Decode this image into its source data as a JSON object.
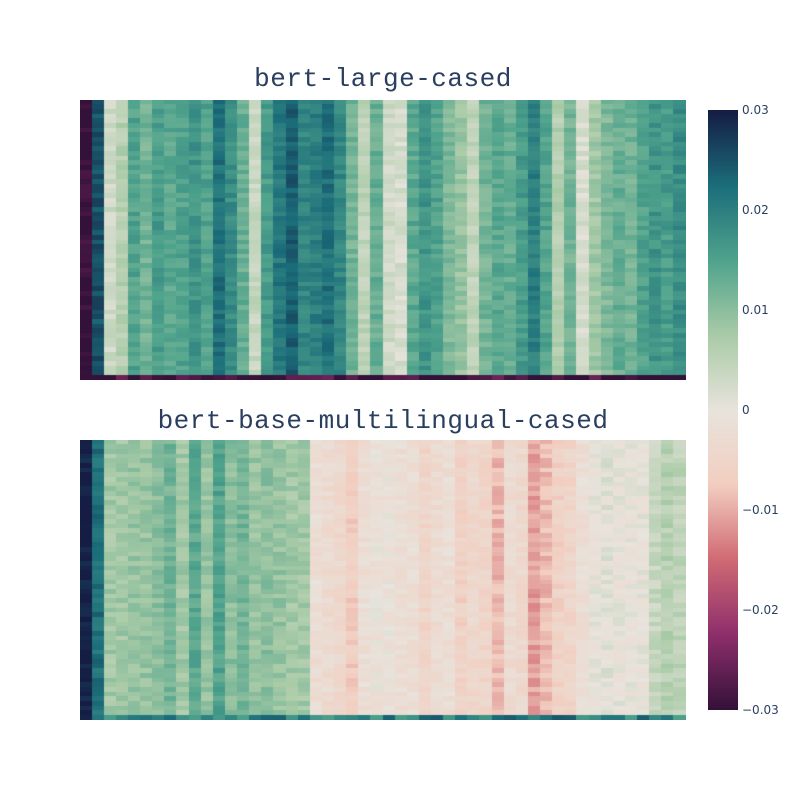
{
  "chart_data": [
    {
      "type": "heatmap",
      "title": "bert-large-cased",
      "rows": 60,
      "cols": 50,
      "column_profile": [
        -0.03,
        0.025,
        0.003,
        0.006,
        0.015,
        0.012,
        0.016,
        0.014,
        0.015,
        0.017,
        0.015,
        0.022,
        0.018,
        0.013,
        0.004,
        0.016,
        0.021,
        0.024,
        0.019,
        0.02,
        0.022,
        0.019,
        0.012,
        0.005,
        0.013,
        0.003,
        0.002,
        0.014,
        0.017,
        0.015,
        0.011,
        0.009,
        0.005,
        0.012,
        0.014,
        0.013,
        0.016,
        0.02,
        0.015,
        0.006,
        0.012,
        0.002,
        0.008,
        0.011,
        0.013,
        0.012,
        0.015,
        0.017,
        0.016,
        0.018
      ],
      "last_row": "dark (~ -0.03)",
      "colorscale": "curl",
      "zmin": -0.03,
      "zmax": 0.03
    },
    {
      "type": "heatmap",
      "title": "bert-base-multilingual-cased",
      "rows": 60,
      "cols": 50,
      "column_profile": [
        0.03,
        0.022,
        0.008,
        0.008,
        0.009,
        0.009,
        0.01,
        0.012,
        0.008,
        0.014,
        0.009,
        0.015,
        0.01,
        0.012,
        0.009,
        0.01,
        0.009,
        0.008,
        0.008,
        -0.002,
        -0.003,
        -0.004,
        -0.007,
        -0.002,
        -0.001,
        -0.001,
        -0.002,
        -0.002,
        -0.005,
        -0.003,
        -0.002,
        -0.006,
        -0.004,
        -0.005,
        -0.009,
        -0.003,
        -0.004,
        -0.011,
        -0.009,
        -0.006,
        -0.005,
        -0.002,
        0.0,
        0.001,
        0.0,
        0.0,
        0.0,
        0.004,
        0.006,
        0.005
      ],
      "last_row": "teal (~ 0.02)",
      "colorscale": "curl",
      "zmin": -0.03,
      "zmax": 0.03
    }
  ],
  "colorbar": {
    "ticks": [
      "0.03",
      "0.02",
      "0.01",
      "0",
      "−0.01",
      "−0.02",
      "−0.03"
    ],
    "tick_values": [
      0.03,
      0.02,
      0.01,
      0,
      -0.01,
      -0.02,
      -0.03
    ],
    "stops": [
      "#341139",
      "#8e2f6c",
      "#d06a73",
      "#f2cec0",
      "#e8e3dc",
      "#a9cba7",
      "#4fa38c",
      "#1b6d7a",
      "#151d44"
    ]
  }
}
